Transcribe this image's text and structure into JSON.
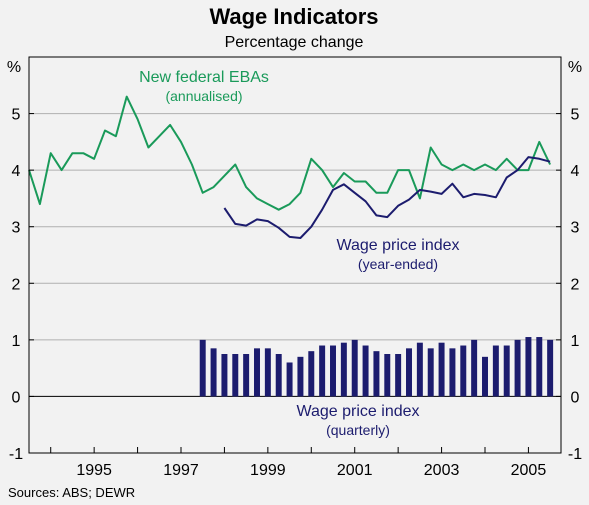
{
  "title": "Wage Indicators",
  "subtitle": "Percentage change",
  "unit_left": "%",
  "unit_right": "%",
  "source": "Sources: ABS; DEWR",
  "annotations": {
    "eba": {
      "line1": "New federal EBAs",
      "line2": "(annualised)"
    },
    "wpi_ye": {
      "line1": "Wage price index",
      "line2": "(year-ended)"
    },
    "wpi_q": {
      "line1": "Wage price index",
      "line2": "(quarterly)"
    }
  },
  "colors": {
    "eba": "#1a9a5a",
    "wpi": "#1c1c6e",
    "grid": "#b0b0b0",
    "background": "#f2f2f2"
  },
  "chart_data": {
    "type": "line",
    "ylim": [
      -1,
      6
    ],
    "xlim": [
      1993.5,
      2005.75
    ],
    "y_ticks": [
      -1,
      0,
      1,
      2,
      3,
      4,
      5
    ],
    "x_ticks": [
      {
        "value": 1995,
        "label": "1995"
      },
      {
        "value": 1997,
        "label": "1997"
      },
      {
        "value": 1999,
        "label": "1999"
      },
      {
        "value": 2001,
        "label": "2001"
      },
      {
        "value": 2003,
        "label": "2003"
      },
      {
        "value": 2005,
        "label": "2005"
      }
    ],
    "grid": true,
    "series": [
      {
        "name": "New federal EBAs",
        "kind": "line",
        "color": "#1a9a5a",
        "x": [
          1993.5,
          1993.75,
          1994.0,
          1994.25,
          1994.5,
          1994.75,
          1995.0,
          1995.25,
          1995.5,
          1995.75,
          1996.0,
          1996.25,
          1996.5,
          1996.75,
          1997.0,
          1997.25,
          1997.5,
          1997.75,
          1998.0,
          1998.25,
          1998.5,
          1998.75,
          1999.0,
          1999.25,
          1999.5,
          1999.75,
          2000.0,
          2000.25,
          2000.5,
          2000.75,
          2001.0,
          2001.25,
          2001.5,
          2001.75,
          2002.0,
          2002.25,
          2002.5,
          2002.75,
          2003.0,
          2003.25,
          2003.5,
          2003.75,
          2004.0,
          2004.25,
          2004.5,
          2004.75,
          2005.0,
          2005.25,
          2005.5
        ],
        "values": [
          4.0,
          3.4,
          4.3,
          4.0,
          4.3,
          4.3,
          4.2,
          4.7,
          4.6,
          5.3,
          4.9,
          4.4,
          4.6,
          4.8,
          4.5,
          4.1,
          3.6,
          3.7,
          3.9,
          4.1,
          3.7,
          3.5,
          3.4,
          3.3,
          3.4,
          3.6,
          4.2,
          4.0,
          3.7,
          3.95,
          3.8,
          3.8,
          3.6,
          3.6,
          4.0,
          4.0,
          3.5,
          4.4,
          4.1,
          4.0,
          4.1,
          4.0,
          4.1,
          4.0,
          4.2,
          4.0,
          4.0,
          4.5,
          4.1
        ]
      },
      {
        "name": "Wage price index (year-ended)",
        "kind": "line",
        "color": "#1c1c6e",
        "x": [
          1998.0,
          1998.25,
          1998.5,
          1998.75,
          1999.0,
          1999.25,
          1999.5,
          1999.75,
          2000.0,
          2000.25,
          2000.5,
          2000.75,
          2001.0,
          2001.25,
          2001.5,
          2001.75,
          2002.0,
          2002.25,
          2002.5,
          2002.75,
          2003.0,
          2003.25,
          2003.5,
          2003.75,
          2004.0,
          2004.25,
          2004.5,
          2004.75,
          2005.0,
          2005.25,
          2005.5
        ],
        "values": [
          3.33,
          3.05,
          3.02,
          3.13,
          3.1,
          2.98,
          2.82,
          2.8,
          3.0,
          3.3,
          3.65,
          3.75,
          3.6,
          3.45,
          3.2,
          3.17,
          3.37,
          3.48,
          3.65,
          3.62,
          3.58,
          3.76,
          3.52,
          3.58,
          3.56,
          3.52,
          3.87,
          4.0,
          4.23,
          4.2,
          4.15
        ]
      },
      {
        "name": "Wage price index (quarterly)",
        "kind": "bar",
        "color": "#1c1c6e",
        "x": [
          1997.5,
          1997.75,
          1998.0,
          1998.25,
          1998.5,
          1998.75,
          1999.0,
          1999.25,
          1999.5,
          1999.75,
          2000.0,
          2000.25,
          2000.5,
          2000.75,
          2001.0,
          2001.25,
          2001.5,
          2001.75,
          2002.0,
          2002.25,
          2002.5,
          2002.75,
          2003.0,
          2003.25,
          2003.5,
          2003.75,
          2004.0,
          2004.25,
          2004.5,
          2004.75,
          2005.0,
          2005.25,
          2005.5
        ],
        "values": [
          1.0,
          0.85,
          0.75,
          0.75,
          0.75,
          0.85,
          0.85,
          0.75,
          0.6,
          0.7,
          0.8,
          0.9,
          0.9,
          0.95,
          1.0,
          0.9,
          0.8,
          0.75,
          0.75,
          0.85,
          0.95,
          0.85,
          0.95,
          0.85,
          0.9,
          1.0,
          0.7,
          0.9,
          0.9,
          1.0,
          1.05,
          1.05,
          1.0
        ]
      }
    ]
  }
}
